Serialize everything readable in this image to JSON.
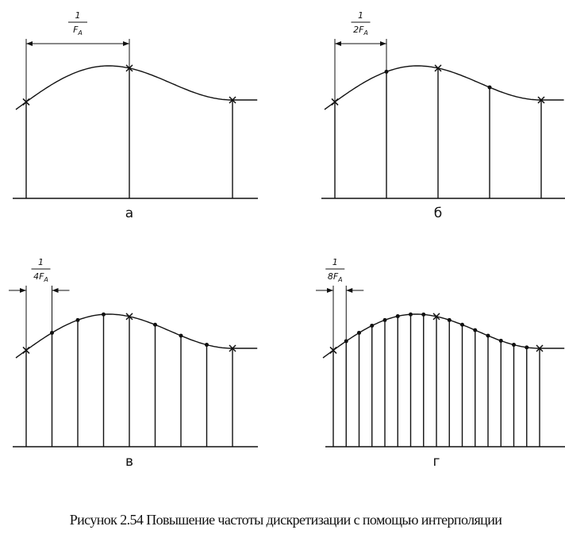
{
  "panels": [
    {
      "label": "а",
      "numerator": "1",
      "denominator": "F",
      "subscript": "A"
    },
    {
      "label": "б",
      "numerator": "1",
      "denominator": "2F",
      "subscript": "A"
    },
    {
      "label": "в",
      "numerator": "1",
      "denominator": "4F",
      "subscript": "A"
    },
    {
      "label": "г",
      "numerator": "1",
      "denominator": "8F",
      "subscript": "A"
    }
  ],
  "caption": "Рисунок 2.54 Повышение частоты дискретизации с помощью интерполяции"
}
